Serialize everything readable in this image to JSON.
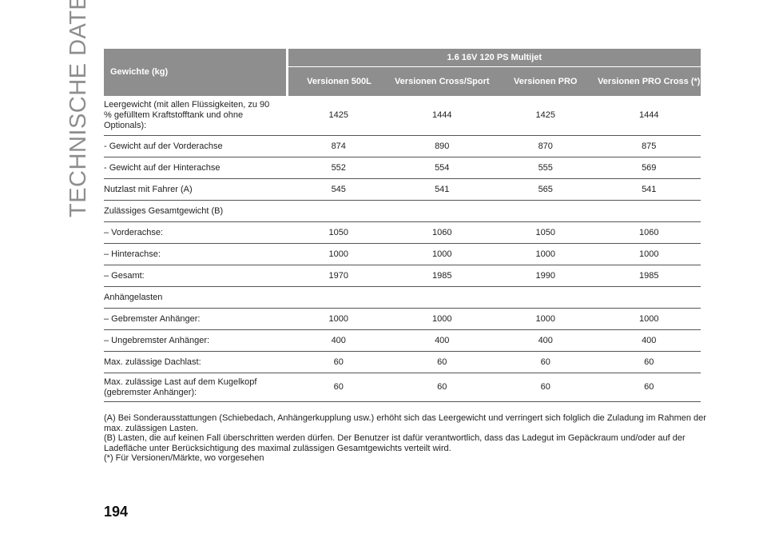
{
  "side_title": "TECHNISCHE DATEN",
  "page_number": "194",
  "table": {
    "label_header": "Gewichte (kg)",
    "group_header": "1.6 16V 120 PS Multijet",
    "version_headers": [
      "Versionen 500L",
      "Versionen Cross/Sport",
      "Versionen PRO",
      "Versionen PRO Cross (*)"
    ],
    "rows": [
      {
        "label": "Leergewicht (mit allen Flüssigkeiten, zu 90 % gefülltem Kraftstofftank und ohne Optionals):",
        "values": [
          "1425",
          "1444",
          "1425",
          "1444"
        ]
      },
      {
        "label": "- Gewicht auf der Vorderachse",
        "values": [
          "874",
          "890",
          "870",
          "875"
        ]
      },
      {
        "label": "- Gewicht auf der Hinterachse",
        "values": [
          "552",
          "554",
          "555",
          "569"
        ]
      },
      {
        "label": "Nutzlast mit Fahrer (A)",
        "values": [
          "545",
          "541",
          "565",
          "541"
        ]
      },
      {
        "label": "Zulässiges Gesamtgewicht (B)",
        "values": [
          "",
          "",
          "",
          ""
        ]
      },
      {
        "label": "– Vorderachse:",
        "values": [
          "1050",
          "1060",
          "1050",
          "1060"
        ]
      },
      {
        "label": "– Hinterachse:",
        "values": [
          "1000",
          "1000",
          "1000",
          "1000"
        ]
      },
      {
        "label": "– Gesamt:",
        "values": [
          "1970",
          "1985",
          "1990",
          "1985"
        ]
      },
      {
        "label": "Anhängelasten",
        "values": [
          "",
          "",
          "",
          ""
        ]
      },
      {
        "label": "– Gebremster Anhänger:",
        "values": [
          "1000",
          "1000",
          "1000",
          "1000"
        ]
      },
      {
        "label": "– Ungebremster Anhänger:",
        "values": [
          "400",
          "400",
          "400",
          "400"
        ]
      },
      {
        "label": "Max. zulässige Dachlast:",
        "values": [
          "60",
          "60",
          "60",
          "60"
        ]
      },
      {
        "label": "Max. zulässige Last auf dem Kugelkopf (gebremster Anhänger):",
        "values": [
          "60",
          "60",
          "60",
          "60"
        ]
      }
    ]
  },
  "footnotes": [
    "(A) Bei Sonderausstattungen (Schiebedach, Anhängerkupplung usw.) erhöht sich das Leergewicht und verringert sich folglich die Zuladung im Rahmen der max. zulässigen Lasten.",
    "(B) Lasten, die auf keinen Fall überschritten werden dürfen. Der Benutzer ist dafür verantwortlich, dass das Ladegut im Gepäckraum und/oder auf der Ladefläche unter Berücksichtigung des maximal zulässigen Gesamtgewichts verteilt wird.",
    "(*) Für Versionen/Märkte, wo vorgesehen"
  ]
}
